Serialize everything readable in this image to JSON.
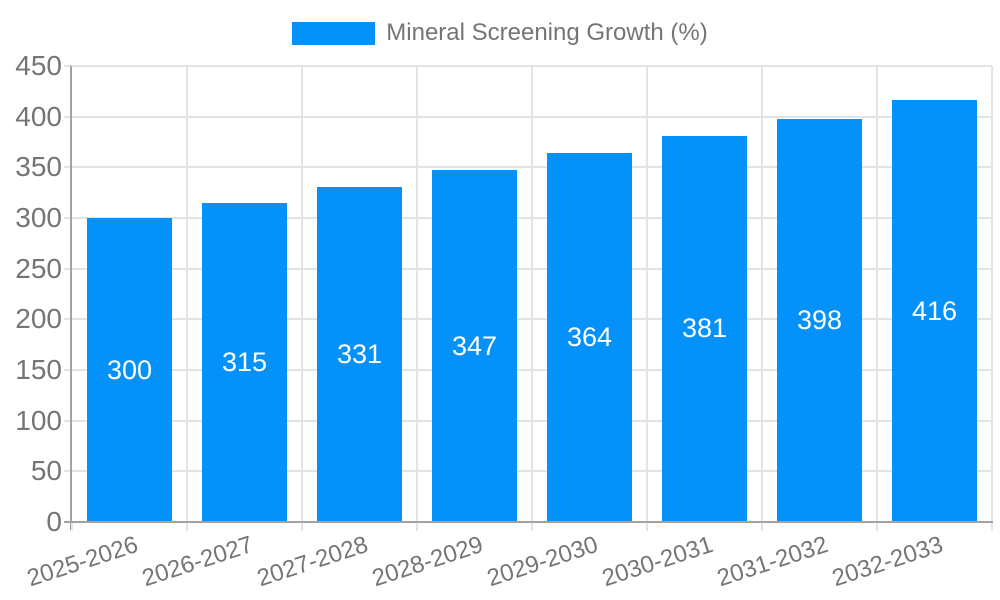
{
  "legend": {
    "label": "Mineral Screening Growth (%)",
    "swatch_color": "#0591FA"
  },
  "chart_data": {
    "type": "bar",
    "title": "Mineral Screening Growth (%)",
    "categories": [
      "2025-2026",
      "2026-2027",
      "2027-2028",
      "2028-2029",
      "2029-2030",
      "2030-2031",
      "2031-2032",
      "2032-2033"
    ],
    "values": [
      300,
      315,
      331,
      347,
      364,
      381,
      398,
      416
    ],
    "bar_value_labels": [
      "300",
      "315",
      "331",
      "347",
      "364",
      "381",
      "398",
      "416"
    ],
    "xlabel": "",
    "ylabel": "",
    "ylim": [
      0,
      450
    ],
    "yticks": [
      0,
      50,
      100,
      150,
      200,
      250,
      300,
      350,
      400,
      450
    ],
    "xtick_rotation_deg": -18,
    "grid": true,
    "legend_position": "top",
    "series_color": "#0591FA",
    "grid_color": "#e3e3e3",
    "axis_color": "#a2a2a2",
    "tick_text_color": "#757575",
    "bar_label_text_color": "#ffffff",
    "background_color": "#ffffff"
  }
}
